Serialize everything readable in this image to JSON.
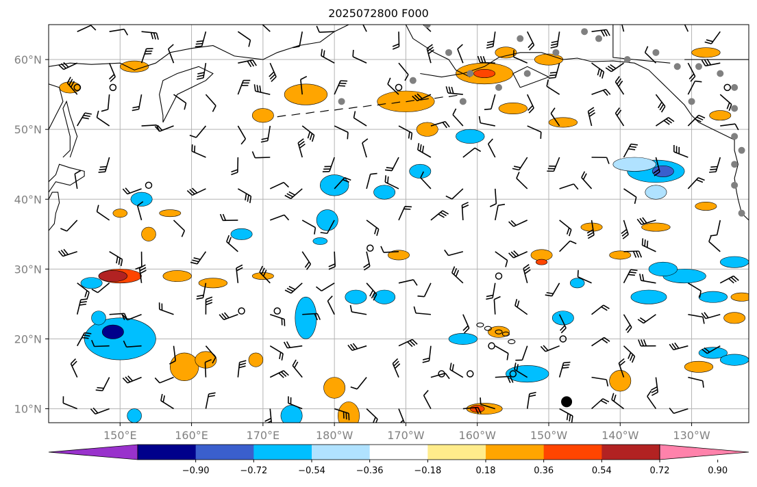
{
  "title": "2025072800 F000",
  "map": {
    "lat_range": [
      8,
      65
    ],
    "lon_range_east": [
      140,
      238
    ],
    "lat_labels": [
      {
        "lat": 10,
        "text": "10°N"
      },
      {
        "lat": 20,
        "text": "20°N"
      },
      {
        "lat": 30,
        "text": "30°N"
      },
      {
        "lat": 40,
        "text": "40°N"
      },
      {
        "lat": 50,
        "text": "50°N"
      },
      {
        "lat": 60,
        "text": "60°N"
      }
    ],
    "lon_labels": [
      {
        "lon": 150,
        "text": "150°E"
      },
      {
        "lon": 160,
        "text": "160°E"
      },
      {
        "lon": 170,
        "text": "170°E"
      },
      {
        "lon": 180,
        "text": "180°W"
      },
      {
        "lon": 190,
        "text": "170°W"
      },
      {
        "lon": 200,
        "text": "160°W"
      },
      {
        "lon": 210,
        "text": "150°W"
      },
      {
        "lon": 220,
        "text": "140°W"
      },
      {
        "lon": 230,
        "text": "130°W"
      }
    ],
    "grid": true,
    "ocean_color": "#ffffff",
    "coastline_color": "#000000",
    "station_color": "#808080"
  },
  "colorbar": {
    "colors": [
      "#9932cc",
      "#00008b",
      "#3a5fcd",
      "#00bfff",
      "#b0e2ff",
      "#ffffff",
      "#ffec8b",
      "#ffa500",
      "#ff4500",
      "#b22222",
      "#ff82ab"
    ],
    "ticks": [
      "−0.90",
      "−0.72",
      "−0.54",
      "−0.36",
      "−0.18",
      "0.18",
      "0.36",
      "0.54",
      "0.72",
      "0.90"
    ],
    "extend": "both"
  },
  "stations": [
    {
      "lon": 181,
      "lat": 54
    },
    {
      "lon": 206,
      "lat": 63
    },
    {
      "lon": 211,
      "lat": 61
    },
    {
      "lon": 215,
      "lat": 64
    },
    {
      "lon": 217,
      "lat": 63
    },
    {
      "lon": 221,
      "lat": 60
    },
    {
      "lon": 225,
      "lat": 61
    },
    {
      "lon": 228,
      "lat": 59
    },
    {
      "lon": 231,
      "lat": 59
    },
    {
      "lon": 234,
      "lat": 58
    },
    {
      "lon": 236,
      "lat": 56
    },
    {
      "lon": 236,
      "lat": 53
    },
    {
      "lon": 236,
      "lat": 49
    },
    {
      "lon": 237,
      "lat": 47
    },
    {
      "lon": 236,
      "lat": 45
    },
    {
      "lon": 236,
      "lat": 42
    },
    {
      "lon": 237,
      "lat": 38
    },
    {
      "lon": 230,
      "lat": 54
    },
    {
      "lon": 207,
      "lat": 58
    },
    {
      "lon": 203,
      "lat": 56
    },
    {
      "lon": 199,
      "lat": 58
    },
    {
      "lon": 198,
      "lat": 54
    },
    {
      "lon": 191,
      "lat": 57
    },
    {
      "lon": 193,
      "lat": 65
    },
    {
      "lon": 196,
      "lat": 61
    }
  ],
  "calm_circles": [
    {
      "lon": 144,
      "lat": 56
    },
    {
      "lon": 149,
      "lat": 56
    },
    {
      "lon": 154,
      "lat": 42
    },
    {
      "lon": 189,
      "lat": 56
    },
    {
      "lon": 185,
      "lat": 33
    },
    {
      "lon": 203,
      "lat": 29
    },
    {
      "lon": 167,
      "lat": 24
    },
    {
      "lon": 172,
      "lat": 24
    },
    {
      "lon": 212,
      "lat": 20
    },
    {
      "lon": 202,
      "lat": 19
    },
    {
      "lon": 195,
      "lat": 15
    },
    {
      "lon": 199,
      "lat": 15
    },
    {
      "lon": 205,
      "lat": 15
    },
    {
      "lon": 235,
      "lat": 56
    }
  ]
}
